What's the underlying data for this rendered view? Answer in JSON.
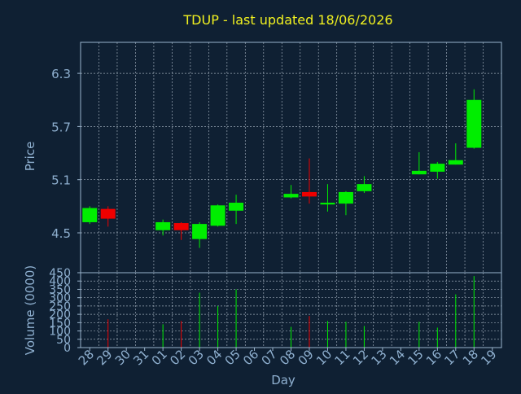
{
  "colors": {
    "background": "#0f2033",
    "title": "#f0f020",
    "axis_text": "#8fb0d0",
    "frame": "#9ab4cc",
    "grid": "#c8d4e0",
    "up": "#00ee00",
    "down": "#ee0000"
  },
  "chart_data": [
    {
      "type": "candlestick",
      "title": "TDUP - last updated 18/06/2026",
      "ylabel": "Price",
      "xlabel": "Day",
      "ylim": [
        4.05,
        6.65
      ],
      "yticks": [
        "4.5",
        "5.1",
        "5.7",
        "6.3"
      ],
      "ytick_values": [
        4.5,
        5.1,
        5.7,
        6.3
      ],
      "grid": true,
      "categories": [
        "28",
        "29",
        "30",
        "31",
        "01",
        "02",
        "03",
        "04",
        "05",
        "06",
        "07",
        "08",
        "09",
        "10",
        "11",
        "12",
        "13",
        "14",
        "15",
        "16",
        "17",
        "18",
        "19"
      ],
      "candles": [
        {
          "x": "28",
          "open": 4.62,
          "high": 4.8,
          "low": 4.6,
          "close": 4.78
        },
        {
          "x": "29",
          "open": 4.77,
          "high": 4.8,
          "low": 4.57,
          "close": 4.66
        },
        {
          "x": "01",
          "open": 4.53,
          "high": 4.65,
          "low": 4.47,
          "close": 4.62
        },
        {
          "x": "02",
          "open": 4.61,
          "high": 4.62,
          "low": 4.42,
          "close": 4.53
        },
        {
          "x": "03",
          "open": 4.43,
          "high": 4.62,
          "low": 4.33,
          "close": 4.6
        },
        {
          "x": "04",
          "open": 4.58,
          "high": 4.82,
          "low": 4.57,
          "close": 4.81
        },
        {
          "x": "05",
          "open": 4.75,
          "high": 4.93,
          "low": 4.6,
          "close": 4.84
        },
        {
          "x": "08",
          "open": 4.9,
          "high": 5.04,
          "low": 4.89,
          "close": 4.94
        },
        {
          "x": "09",
          "open": 4.96,
          "high": 5.34,
          "low": 4.83,
          "close": 4.91
        },
        {
          "x": "10",
          "open": 4.82,
          "high": 5.05,
          "low": 4.74,
          "close": 4.84
        },
        {
          "x": "11",
          "open": 4.83,
          "high": 4.97,
          "low": 4.7,
          "close": 4.96
        },
        {
          "x": "12",
          "open": 4.97,
          "high": 5.14,
          "low": 4.95,
          "close": 5.05
        },
        {
          "x": "15",
          "open": 5.16,
          "high": 5.41,
          "low": 5.16,
          "close": 5.2
        },
        {
          "x": "16",
          "open": 5.19,
          "high": 5.3,
          "low": 5.11,
          "close": 5.28
        },
        {
          "x": "17",
          "open": 5.27,
          "high": 5.51,
          "low": 5.27,
          "close": 5.32
        },
        {
          "x": "18",
          "open": 5.46,
          "high": 6.12,
          "low": 5.45,
          "close": 6.0
        }
      ]
    },
    {
      "type": "bar",
      "ylabel": "Volume (0000)",
      "xlabel": "Day",
      "ylim": [
        0,
        450
      ],
      "yticks": [
        "0",
        "50",
        "100",
        "150",
        "200",
        "250",
        "300",
        "350",
        "400",
        "450"
      ],
      "ytick_values": [
        0,
        50,
        100,
        150,
        200,
        250,
        300,
        350,
        400,
        450
      ],
      "grid": true,
      "categories": [
        "28",
        "29",
        "30",
        "31",
        "01",
        "02",
        "03",
        "04",
        "05",
        "06",
        "07",
        "08",
        "09",
        "10",
        "11",
        "12",
        "13",
        "14",
        "15",
        "16",
        "17",
        "18",
        "19"
      ],
      "bars": [
        {
          "x": "28",
          "value": 0,
          "dir": "up"
        },
        {
          "x": "29",
          "value": 170,
          "dir": "down"
        },
        {
          "x": "01",
          "value": 140,
          "dir": "up"
        },
        {
          "x": "02",
          "value": 160,
          "dir": "down"
        },
        {
          "x": "03",
          "value": 330,
          "dir": "up"
        },
        {
          "x": "04",
          "value": 250,
          "dir": "up"
        },
        {
          "x": "05",
          "value": 350,
          "dir": "up"
        },
        {
          "x": "08",
          "value": 125,
          "dir": "up"
        },
        {
          "x": "09",
          "value": 190,
          "dir": "down"
        },
        {
          "x": "10",
          "value": 160,
          "dir": "up"
        },
        {
          "x": "11",
          "value": 155,
          "dir": "up"
        },
        {
          "x": "12",
          "value": 130,
          "dir": "up"
        },
        {
          "x": "15",
          "value": 155,
          "dir": "up"
        },
        {
          "x": "16",
          "value": 120,
          "dir": "up"
        },
        {
          "x": "17",
          "value": 320,
          "dir": "up"
        },
        {
          "x": "18",
          "value": 430,
          "dir": "up"
        }
      ]
    }
  ]
}
